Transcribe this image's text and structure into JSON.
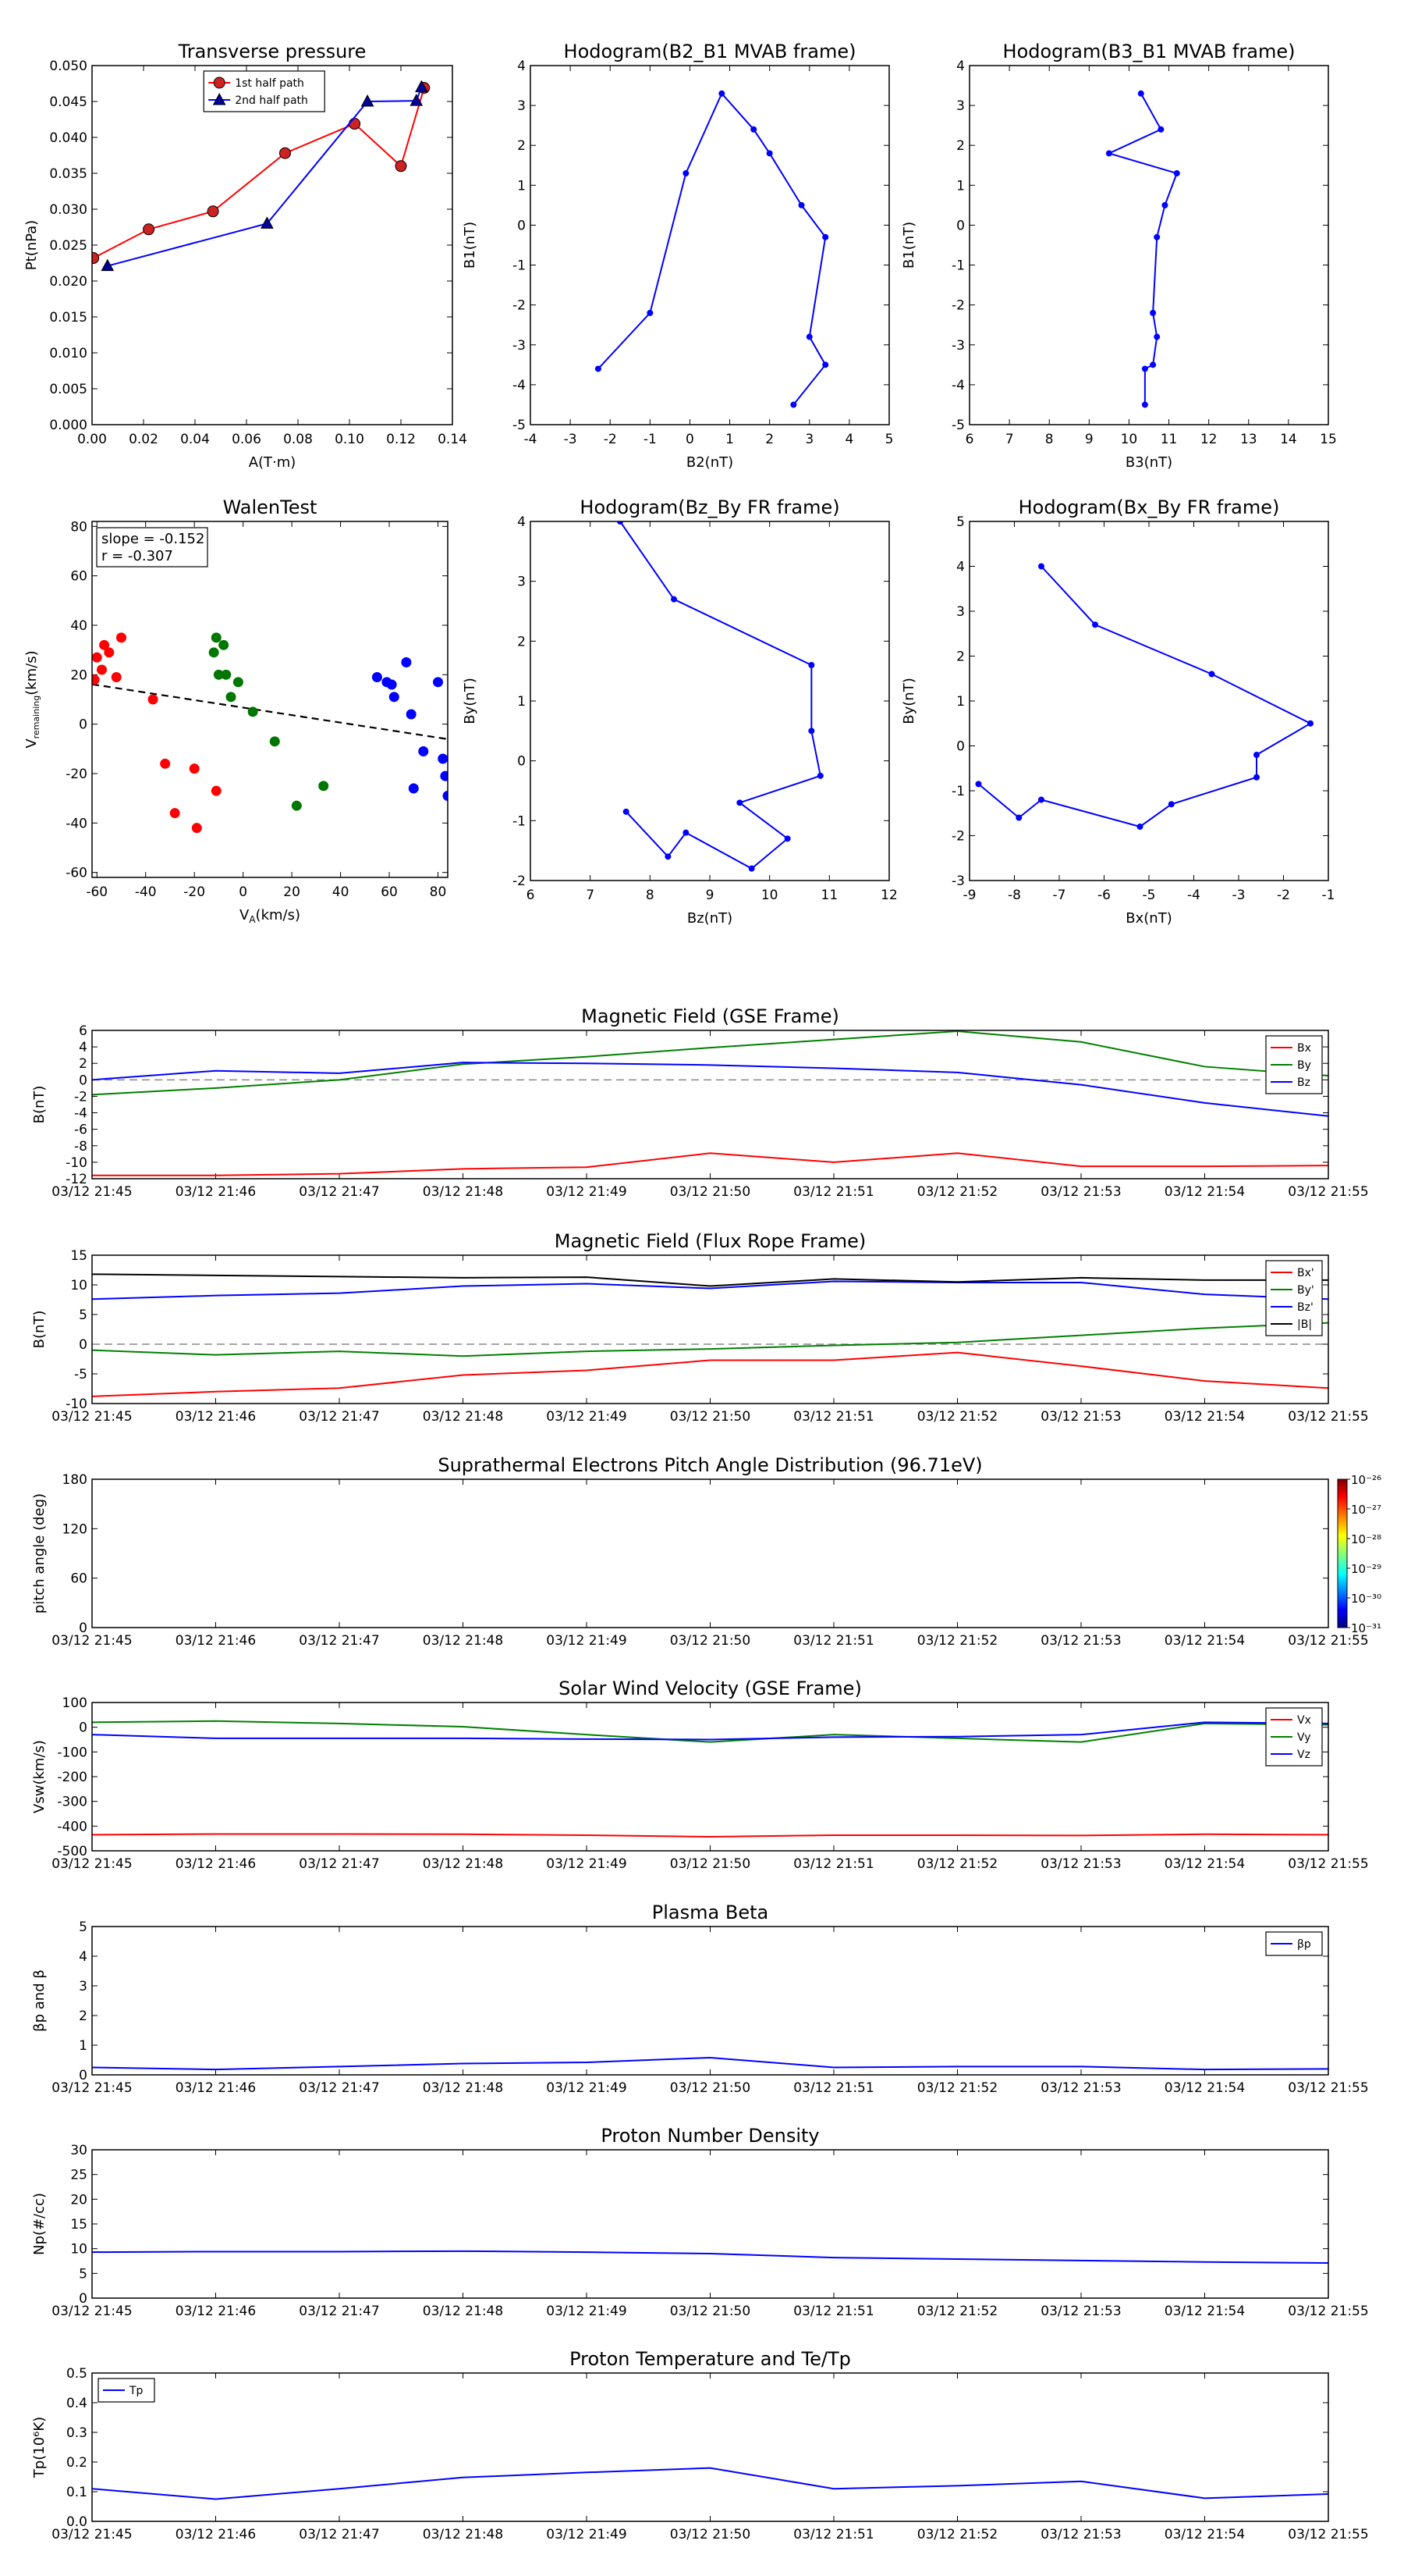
{
  "times": [
    "03/12 21:45",
    "03/12 21:46",
    "03/12 21:47",
    "03/12 21:48",
    "03/12 21:49",
    "03/12 21:50",
    "03/12 21:51",
    "03/12 21:52",
    "03/12 21:53",
    "03/12 21:54",
    "03/12 21:55"
  ],
  "chart_data": [
    {
      "id": "pt",
      "type": "line",
      "title": "Transverse pressure",
      "xlabel": "A(T·m)",
      "ylabel": "Pt(nPa)",
      "xlim": [
        0,
        0.14
      ],
      "ylim": [
        0,
        0.05
      ],
      "xticks": [
        0,
        0.02,
        0.04,
        0.06,
        0.08,
        0.1,
        0.12,
        0.14
      ],
      "xticklabels": [
        "0.00",
        "0.02",
        "0.04",
        "0.06",
        "0.08",
        "0.10",
        "0.12",
        "0.14"
      ],
      "yticks": [
        0,
        0.005,
        0.01,
        0.015,
        0.02,
        0.025,
        0.03,
        0.035,
        0.04,
        0.045,
        0.05
      ],
      "yticklabels": [
        "0.000",
        "0.005",
        "0.010",
        "0.015",
        "0.020",
        "0.025",
        "0.030",
        "0.035",
        "0.040",
        "0.045",
        "0.050"
      ],
      "legend": "top-center",
      "series": [
        {
          "name": "1st half path",
          "color": "#ff0000",
          "marker": "circle",
          "face": "#cc2222",
          "x": [
            0.0005,
            0.022,
            0.047,
            0.075,
            0.102,
            0.12,
            0.129
          ],
          "y": [
            0.0232,
            0.0272,
            0.0297,
            0.0378,
            0.0419,
            0.036,
            0.0469
          ]
        },
        {
          "name": "2nd half path",
          "color": "#0000ff",
          "marker": "triangle",
          "face": "#000099",
          "x": [
            0.006,
            0.068,
            0.107,
            0.126,
            0.128
          ],
          "y": [
            0.0221,
            0.028,
            0.045,
            0.0451,
            0.047
          ]
        }
      ]
    },
    {
      "id": "h1",
      "type": "line",
      "title": "Hodogram(B2_B1 MVAB frame)",
      "xlabel": "B2(nT)",
      "ylabel": "B1(nT)",
      "xlim": [
        -4,
        5
      ],
      "ylim": [
        -5,
        4
      ],
      "xticks": [
        -4,
        -3,
        -2,
        -1,
        0,
        1,
        2,
        3,
        4,
        5
      ],
      "yticks": [
        -5,
        -4,
        -3,
        -2,
        -1,
        0,
        1,
        2,
        3,
        4
      ],
      "series": [
        {
          "color": "#0000ff",
          "marker": "dot",
          "x": [
            -2.3,
            -1.0,
            -0.1,
            0.8,
            1.6,
            2.0,
            2.8,
            3.4,
            3.0,
            3.4,
            2.6
          ],
          "y": [
            -3.6,
            -2.2,
            1.3,
            3.3,
            2.4,
            1.8,
            0.5,
            -0.3,
            -2.8,
            -3.5,
            -4.5
          ]
        }
      ]
    },
    {
      "id": "h2",
      "type": "line",
      "title": "Hodogram(B3_B1 MVAB frame)",
      "xlabel": "B3(nT)",
      "ylabel": "B1(nT)",
      "xlim": [
        6,
        15
      ],
      "ylim": [
        -5,
        4
      ],
      "xticks": [
        6,
        7,
        8,
        9,
        10,
        11,
        12,
        13,
        14,
        15
      ],
      "yticks": [
        -5,
        -4,
        -3,
        -2,
        -1,
        0,
        1,
        2,
        3,
        4
      ],
      "series": [
        {
          "color": "#0000ff",
          "marker": "dot",
          "x": [
            10.3,
            10.8,
            9.5,
            11.2,
            10.9,
            10.7,
            10.6,
            10.7,
            10.6,
            10.4,
            10.4
          ],
          "y": [
            3.3,
            2.4,
            1.8,
            1.3,
            0.5,
            -0.3,
            -2.2,
            -2.8,
            -3.5,
            -3.6,
            -4.5
          ]
        }
      ]
    },
    {
      "id": "walen",
      "type": "scatter",
      "title": "WalenTest",
      "xlabel": "V_A(km/s)",
      "ylabel": "V_remaining(km/s)",
      "xlim": [
        -62,
        84
      ],
      "ylim": [
        -62,
        82
      ],
      "xticks": [
        -60,
        -40,
        -20,
        0,
        20,
        40,
        60,
        80
      ],
      "yticks": [
        -60,
        -40,
        -20,
        0,
        20,
        40,
        60,
        80
      ],
      "annotation": [
        "slope = -0.152",
        "r = -0.307"
      ],
      "fit": {
        "slope": -0.152,
        "intercept": 6.7
      },
      "series": [
        {
          "color": "#ff0000",
          "x": [
            -60,
            -58,
            -55,
            -52,
            -50,
            -37,
            -32,
            -28,
            -20,
            -19,
            -11,
            -57,
            -61
          ],
          "y": [
            27,
            22,
            29,
            19,
            35,
            10,
            -16,
            -36,
            -18,
            -42,
            -27,
            32,
            18
          ]
        },
        {
          "color": "#007700",
          "x": [
            -12,
            -11,
            -10,
            -8,
            -7,
            -5,
            -2,
            4,
            13,
            22,
            33
          ],
          "y": [
            29,
            35,
            20,
            32,
            20,
            11,
            17,
            5,
            -7,
            -33,
            -25
          ]
        },
        {
          "color": "#0000ff",
          "x": [
            55,
            59,
            61,
            62,
            67,
            69,
            70,
            74,
            82,
            83,
            84,
            80
          ],
          "y": [
            19,
            17,
            16,
            11,
            25,
            4,
            -26,
            -11,
            -14,
            -21,
            -29,
            17
          ]
        }
      ]
    },
    {
      "id": "h3",
      "type": "line",
      "title": "Hodogram(Bz_By FR frame)",
      "xlabel": "Bz(nT)",
      "ylabel": "By(nT)",
      "xlim": [
        6,
        12
      ],
      "ylim": [
        -2,
        4
      ],
      "xticks": [
        6,
        7,
        8,
        9,
        10,
        11,
        12
      ],
      "yticks": [
        -2,
        -1,
        0,
        1,
        2,
        3,
        4
      ],
      "series": [
        {
          "color": "#0000ff",
          "marker": "dot",
          "x": [
            7.5,
            8.4,
            10.7,
            10.7,
            10.85,
            9.5,
            10.3,
            9.7,
            8.6,
            8.3,
            7.6
          ],
          "y": [
            4.0,
            2.7,
            1.6,
            0.5,
            -0.25,
            -0.7,
            -1.3,
            -1.8,
            -1.2,
            -1.6,
            -0.85
          ]
        }
      ]
    },
    {
      "id": "h4",
      "type": "line",
      "title": "Hodogram(Bx_By FR frame)",
      "xlabel": "Bx(nT)",
      "ylabel": "By(nT)",
      "xlim": [
        -9,
        -1
      ],
      "ylim": [
        -3,
        5
      ],
      "xticks": [
        -9,
        -8,
        -7,
        -6,
        -5,
        -4,
        -3,
        -2,
        -1
      ],
      "yticks": [
        -3,
        -2,
        -1,
        0,
        1,
        2,
        3,
        4,
        5
      ],
      "series": [
        {
          "color": "#0000ff",
          "marker": "dot",
          "x": [
            -7.4,
            -6.2,
            -3.6,
            -1.4,
            -2.6,
            -2.6,
            -4.5,
            -5.2,
            -7.4,
            -7.9,
            -8.8
          ],
          "y": [
            4.0,
            2.7,
            1.6,
            0.5,
            -0.2,
            -0.7,
            -1.3,
            -1.8,
            -1.2,
            -1.6,
            -0.85
          ]
        }
      ]
    },
    {
      "id": "bgse",
      "type": "line",
      "title": "Magnetic Field (GSE Frame)",
      "ylabel": "B(nT)",
      "ylim": [
        -12,
        6
      ],
      "yticks": [
        -12,
        -10,
        -8,
        -6,
        -4,
        -2,
        0,
        2,
        4,
        6
      ],
      "zeroline": true,
      "legend": "top-right",
      "series": [
        {
          "name": "Bx",
          "color": "#ff0000",
          "y": [
            -11.6,
            -11.6,
            -11.4,
            -10.8,
            -10.6,
            -8.9,
            -10.0,
            -8.9,
            -10.5,
            -10.5,
            -10.4
          ]
        },
        {
          "name": "By",
          "color": "#008000",
          "y": [
            -1.8,
            -1.0,
            0.0,
            1.9,
            2.8,
            3.9,
            4.9,
            5.9,
            4.6,
            1.6,
            0.5
          ]
        },
        {
          "name": "Bz",
          "color": "#0000ff",
          "y": [
            0.0,
            1.1,
            0.8,
            2.1,
            2.0,
            1.8,
            1.4,
            0.9,
            -0.6,
            -2.8,
            -4.4
          ]
        }
      ]
    },
    {
      "id": "bfr",
      "type": "line",
      "title": "Magnetic Field (Flux Rope Frame)",
      "ylabel": "B(nT)",
      "ylim": [
        -10,
        15
      ],
      "yticks": [
        -10,
        -5,
        0,
        5,
        10,
        15
      ],
      "zeroline": true,
      "legend": "top-right",
      "series": [
        {
          "name": "Bx'",
          "color": "#ff0000",
          "y": [
            -8.8,
            -8.0,
            -7.4,
            -5.2,
            -4.4,
            -2.7,
            -2.7,
            -1.4,
            -3.7,
            -6.2,
            -7.4
          ]
        },
        {
          "name": "By'",
          "color": "#008000",
          "y": [
            -1.0,
            -1.8,
            -1.2,
            -2.0,
            -1.2,
            -0.8,
            -0.2,
            0.3,
            1.5,
            2.7,
            3.6
          ]
        },
        {
          "name": "Bz'",
          "color": "#0000ff",
          "y": [
            7.6,
            8.2,
            8.6,
            9.8,
            10.2,
            9.4,
            10.6,
            10.4,
            10.4,
            8.4,
            7.6
          ]
        },
        {
          "name": "|B|",
          "color": "#000000",
          "y": [
            11.8,
            11.6,
            11.4,
            11.2,
            11.3,
            9.8,
            11.0,
            10.5,
            11.2,
            10.8,
            10.8
          ]
        }
      ]
    },
    {
      "id": "pad",
      "type": "heatmap",
      "title": "Suprathermal Electrons Pitch Angle Distribution (96.71eV)",
      "ylabel": "pitch angle (deg)",
      "ylim": [
        0,
        180
      ],
      "yticks": [
        0,
        60,
        120,
        180
      ],
      "colorbar": {
        "labels": [
          "10⁻²⁶",
          "10⁻²⁷",
          "10⁻²⁸",
          "10⁻²⁹",
          "10⁻³⁰",
          "10⁻³¹"
        ]
      }
    },
    {
      "id": "vsw",
      "type": "line",
      "title": "Solar Wind Velocity (GSE Frame)",
      "ylabel": "Vsw(km/s)",
      "ylim": [
        -500,
        100
      ],
      "yticks": [
        -500,
        -400,
        -300,
        -200,
        -100,
        0,
        100
      ],
      "legend": "top-right",
      "series": [
        {
          "name": "Vx",
          "color": "#ff0000",
          "y": [
            -435,
            -432,
            -432,
            -433,
            -437,
            -443,
            -437,
            -437,
            -438,
            -433,
            -435
          ]
        },
        {
          "name": "Vy",
          "color": "#008000",
          "y": [
            20,
            25,
            15,
            2,
            -30,
            -60,
            -30,
            -45,
            -60,
            15,
            10
          ]
        },
        {
          "name": "Vz",
          "color": "#0000ff",
          "y": [
            -30,
            -45,
            -45,
            -45,
            -48,
            -50,
            -40,
            -38,
            -30,
            20,
            15
          ]
        }
      ]
    },
    {
      "id": "beta",
      "type": "line",
      "title": "Plasma Beta",
      "ylabel": "βp and β",
      "ylim": [
        0,
        5
      ],
      "yticks": [
        0,
        1,
        2,
        3,
        4,
        5
      ],
      "legend": "top-right",
      "series": [
        {
          "name": "βp",
          "color": "#0000ff",
          "y": [
            0.25,
            0.18,
            0.28,
            0.38,
            0.42,
            0.58,
            0.25,
            0.28,
            0.28,
            0.18,
            0.2
          ]
        }
      ]
    },
    {
      "id": "np",
      "type": "line",
      "title": "Proton Number Density",
      "ylabel": "Np(#/cc)",
      "ylim": [
        0,
        30
      ],
      "yticks": [
        0,
        5,
        10,
        15,
        20,
        25,
        30
      ],
      "series": [
        {
          "color": "#0000ff",
          "y": [
            9.3,
            9.4,
            9.4,
            9.5,
            9.3,
            9.0,
            8.2,
            7.9,
            7.6,
            7.3,
            7.1
          ]
        }
      ]
    },
    {
      "id": "tp",
      "type": "line",
      "title": "Proton Temperature and Te/Tp",
      "ylabel": "Tp(10⁶K)",
      "ylim": [
        0,
        0.5
      ],
      "yticks": [
        0,
        0.1,
        0.2,
        0.3,
        0.4,
        0.5
      ],
      "yticklabels": [
        "0.0",
        "0.1",
        "0.2",
        "0.3",
        "0.4",
        "0.5"
      ],
      "legend": "top-left",
      "series": [
        {
          "name": "Tp",
          "color": "#0000ff",
          "y": [
            0.11,
            0.075,
            0.11,
            0.148,
            0.165,
            0.18,
            0.11,
            0.12,
            0.135,
            0.078,
            0.092
          ]
        }
      ]
    }
  ]
}
